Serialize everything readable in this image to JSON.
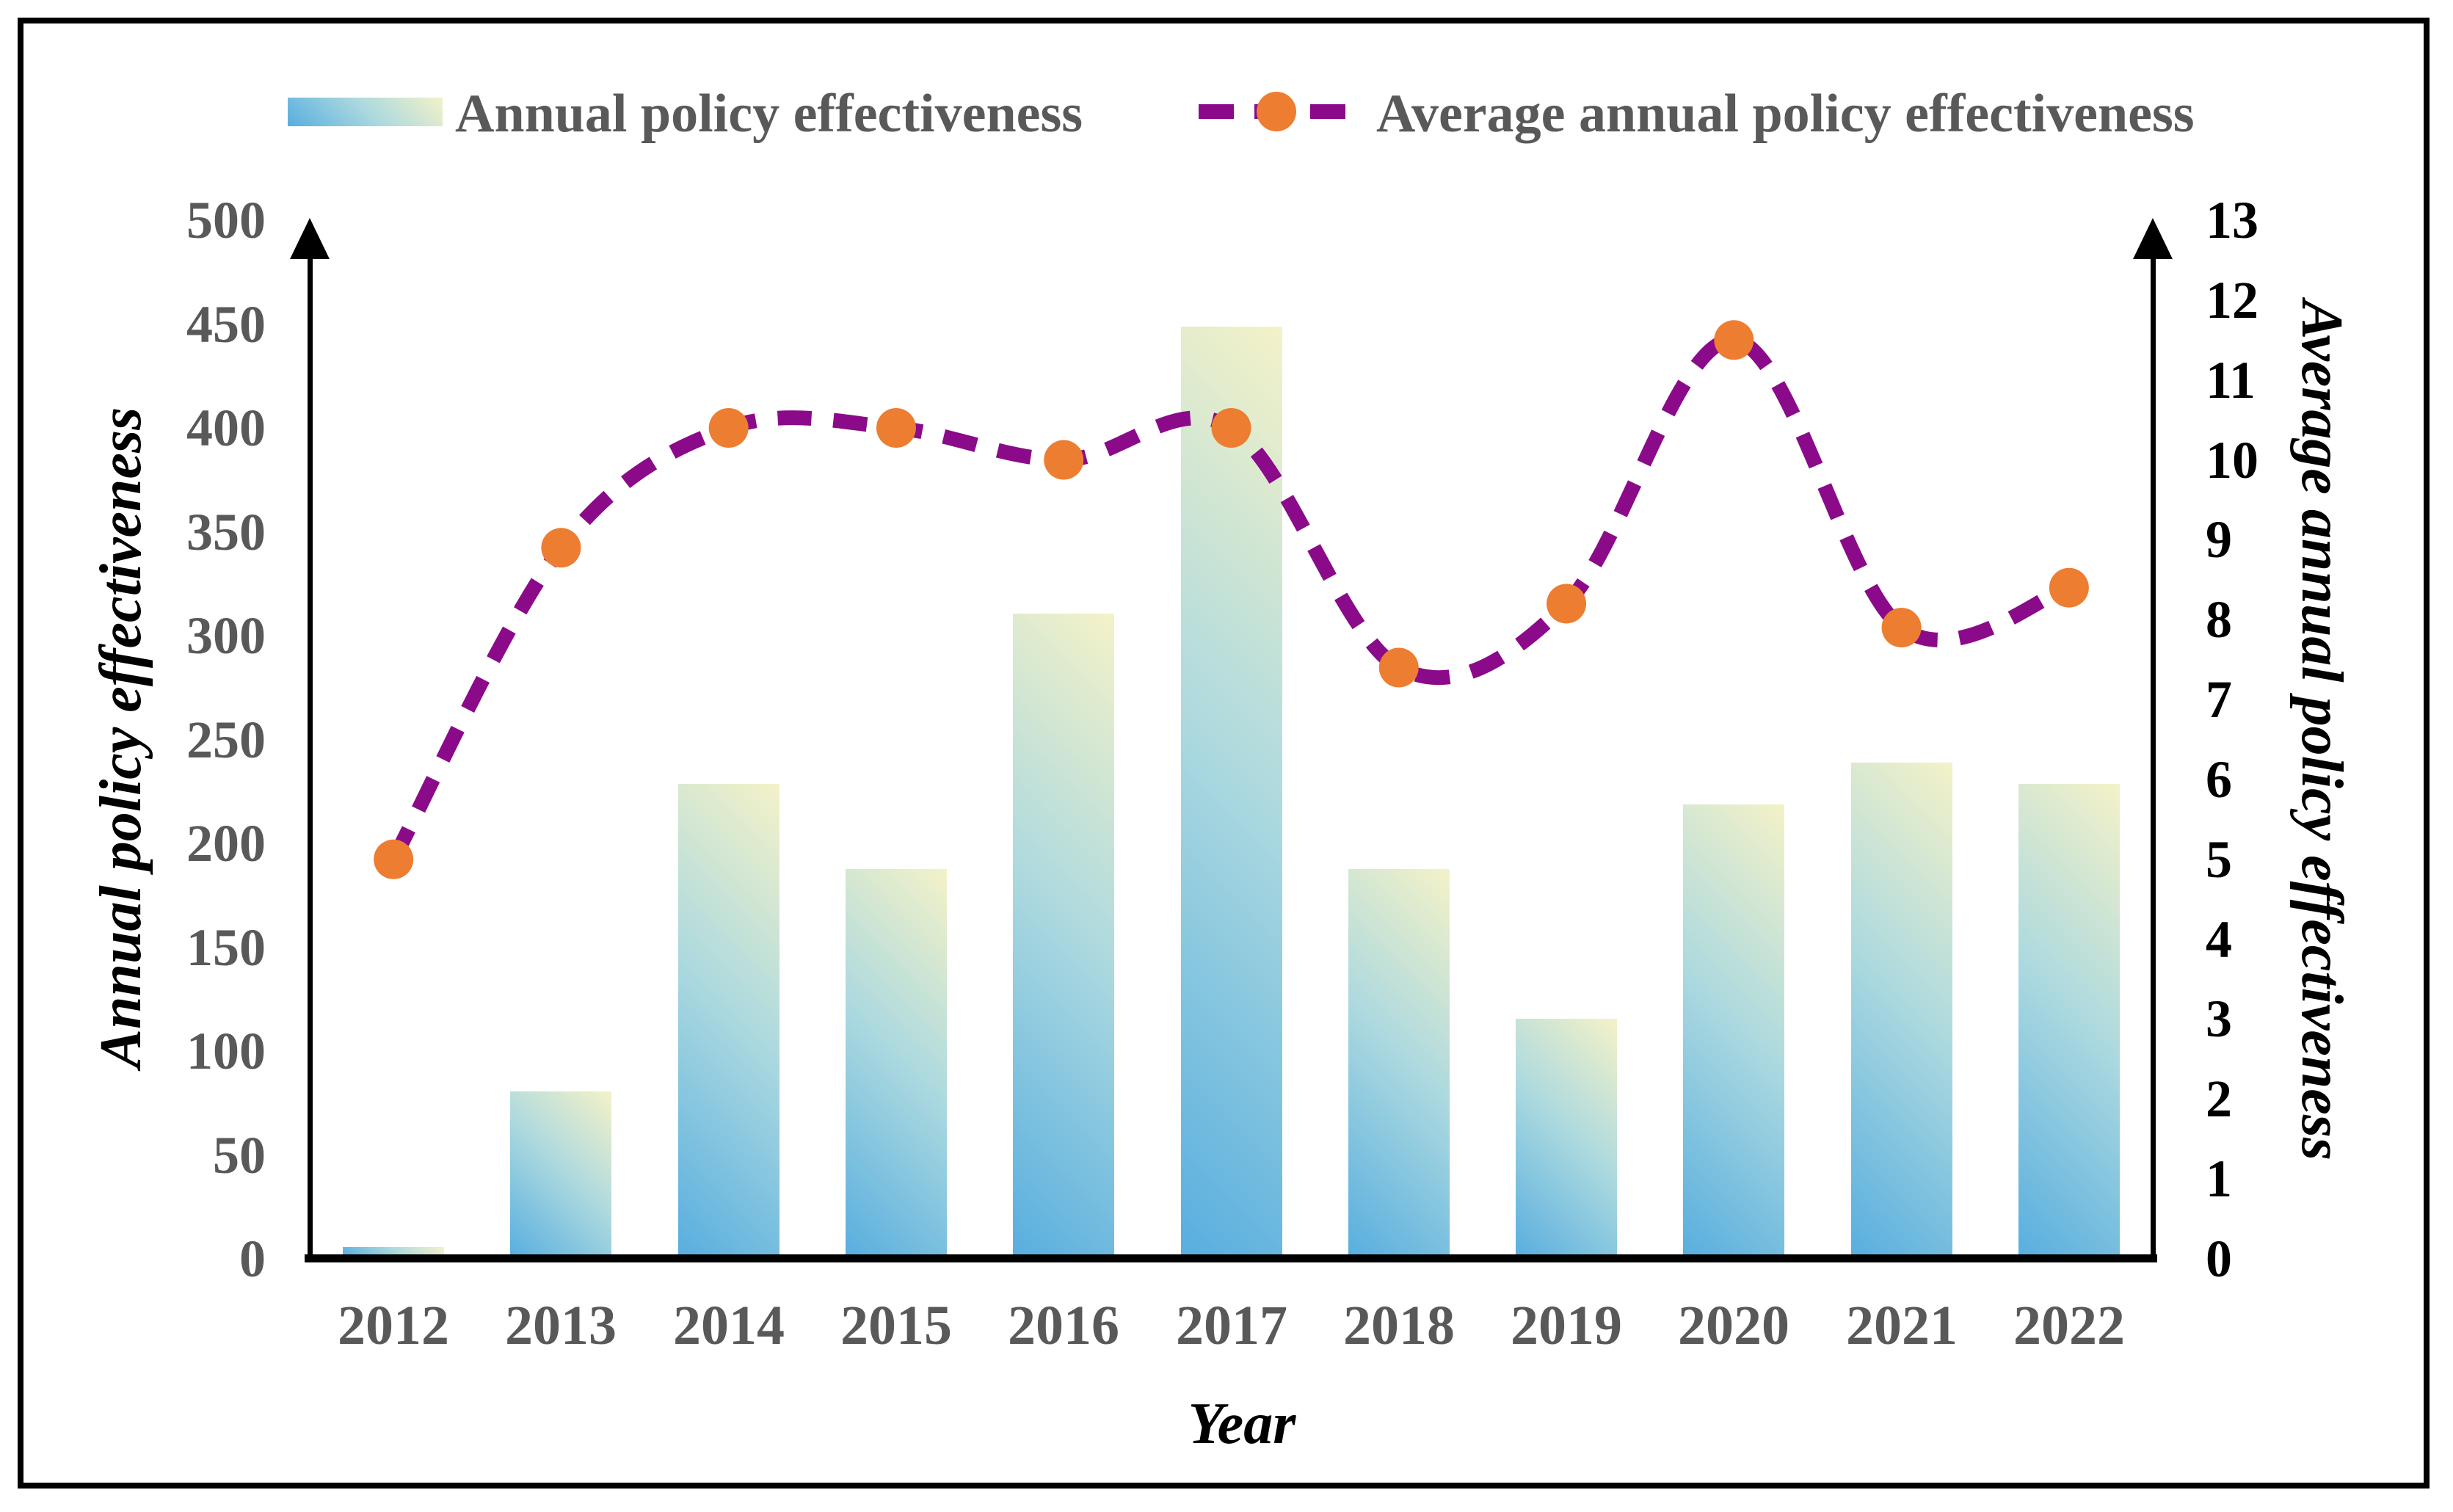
{
  "legend": {
    "items": [
      {
        "label": "Annual policy effectiveness",
        "symbol": "gradient-bar-swatch"
      },
      {
        "label": "Average annual policy effectiveness",
        "symbol": "purple-dash-orange-dot"
      }
    ]
  },
  "axes": {
    "left": {
      "title": "Annual policy effectiveness",
      "ticks": [
        0,
        50,
        100,
        150,
        200,
        250,
        300,
        350,
        400,
        450,
        500
      ],
      "range": [
        0,
        500
      ]
    },
    "right": {
      "title": "Average annual policy effectiveness",
      "ticks": [
        0,
        1,
        2,
        3,
        4,
        5,
        6,
        7,
        8,
        9,
        10,
        11,
        12,
        13
      ],
      "range": [
        0,
        13
      ]
    },
    "x": {
      "title": "Year"
    }
  },
  "colors": {
    "bar_gradient_start": "#58AEDF",
    "bar_gradient_mid": "#ACD9DF",
    "bar_gradient_end": "#F4F2C8",
    "line": "#8A0A8A",
    "marker": "#ED7D31",
    "left_tick_text": "#595959",
    "right_tick_text": "#000000",
    "x_tick_text": "#595959",
    "legend_text": "#595959",
    "axis_title_text": "#000000",
    "frame": "#000000"
  },
  "chart_data": {
    "type": "bar+line",
    "categories": [
      "2012",
      "2013",
      "2014",
      "2015",
      "2016",
      "2017",
      "2018",
      "2019",
      "2020",
      "2021",
      "2022"
    ],
    "series": [
      {
        "name": "Annual policy effectiveness",
        "type": "bar",
        "axis": "left",
        "values": [
          5,
          80,
          228,
          187,
          310,
          448,
          187,
          115,
          218,
          238,
          228
        ]
      },
      {
        "name": "Average annual policy effectiveness",
        "type": "line",
        "axis": "right",
        "values": [
          5.0,
          8.9,
          10.4,
          10.4,
          10.0,
          10.4,
          7.4,
          8.2,
          11.5,
          7.9,
          8.4
        ]
      }
    ],
    "title": "",
    "xlabel": "Year",
    "left_ylabel": "Annual policy effectiveness",
    "right_ylabel": "Average annual policy effectiveness",
    "left_ylim": [
      0,
      500
    ],
    "right_ylim": [
      0,
      13
    ],
    "legend_position": "top",
    "grid": false,
    "line_style": "thick-dashed",
    "marker_style": "filled-circle"
  }
}
